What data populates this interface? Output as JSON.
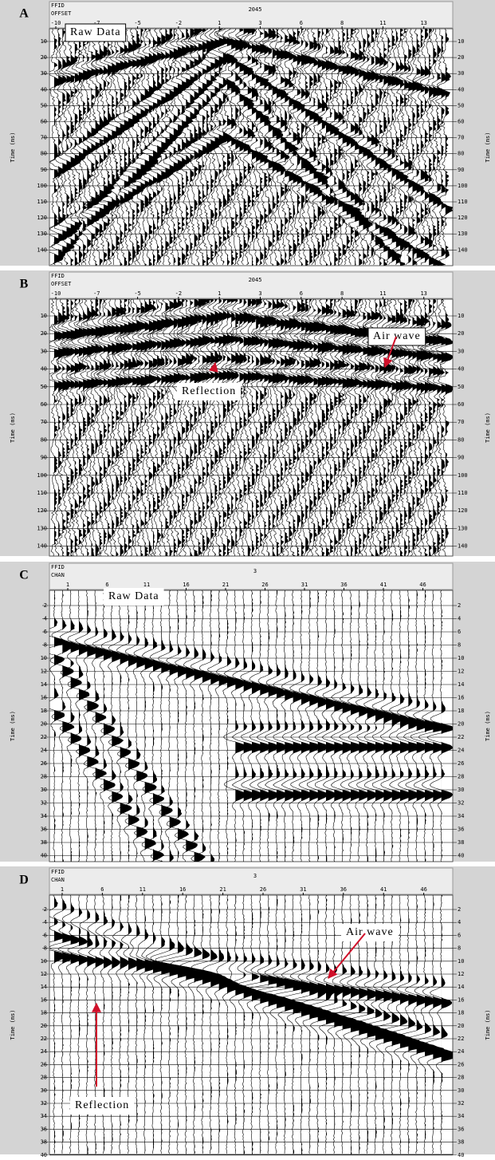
{
  "panels": [
    {
      "letter": "A",
      "ffid_label": "FFID",
      "axis_label": "OFFSET",
      "record": "2045",
      "x_ticks": [
        -10,
        -7,
        -5,
        -2,
        1,
        3,
        6,
        8,
        11,
        13
      ],
      "y_ticks": [
        10,
        20,
        30,
        40,
        50,
        60,
        70,
        80,
        90,
        100,
        110,
        120,
        130,
        140
      ],
      "y_label": "Time (ms)",
      "annotations": [
        "Raw Data"
      ]
    },
    {
      "letter": "B",
      "ffid_label": "FFID",
      "axis_label": "OFFSET",
      "record": "2045",
      "x_ticks": [
        -10,
        -7,
        -5,
        -2,
        1,
        3,
        6,
        8,
        11,
        13
      ],
      "y_ticks": [
        10,
        20,
        30,
        40,
        50,
        60,
        70,
        80,
        90,
        100,
        110,
        120,
        130,
        140
      ],
      "y_label": "Time (ms)",
      "annotations": [
        "Air wave",
        "Reflection"
      ]
    },
    {
      "letter": "C",
      "ffid_label": "FFID",
      "axis_label": "CHAN",
      "record": "3",
      "x_ticks": [
        1,
        6,
        11,
        16,
        21,
        26,
        31,
        36,
        41,
        46
      ],
      "y_ticks": [
        2,
        4,
        6,
        8,
        10,
        12,
        14,
        16,
        18,
        20,
        22,
        24,
        26,
        28,
        30,
        32,
        34,
        36,
        38,
        40
      ],
      "y_label": "Time (ms)",
      "annotations": [
        "Raw Data"
      ]
    },
    {
      "letter": "D",
      "ffid_label": "FFID",
      "axis_label": "CHAN",
      "record": "3",
      "x_ticks": [
        1,
        6,
        11,
        16,
        21,
        26,
        31,
        36,
        41,
        46
      ],
      "y_ticks": [
        2,
        4,
        6,
        8,
        10,
        12,
        14,
        16,
        18,
        20,
        22,
        24,
        26,
        28,
        30,
        32,
        34,
        36,
        38,
        40
      ],
      "y_label": "Time (ms)",
      "annotations": [
        "Air wave",
        "Reflection"
      ]
    }
  ]
}
